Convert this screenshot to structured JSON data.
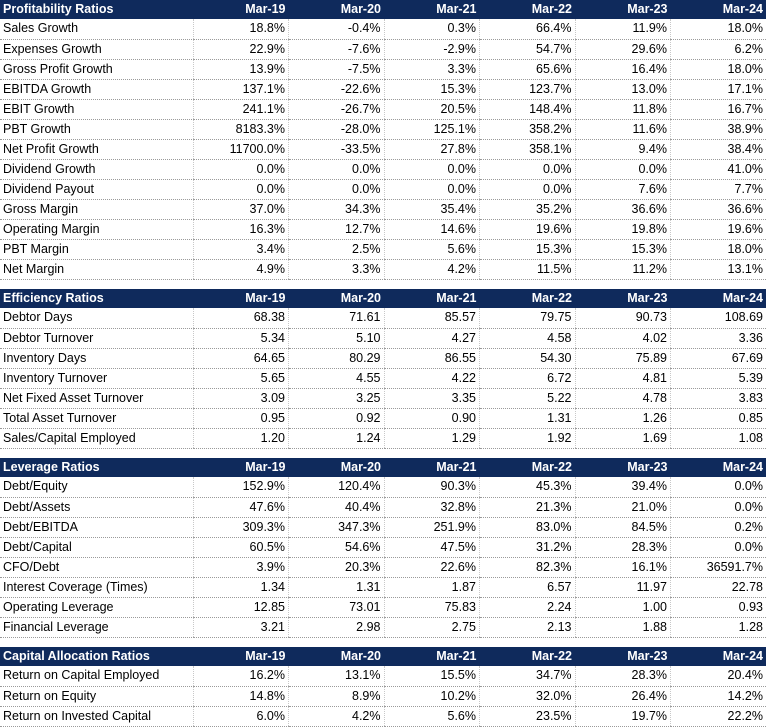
{
  "years": [
    "Mar-19",
    "Mar-20",
    "Mar-21",
    "Mar-22",
    "Mar-23",
    "Mar-24"
  ],
  "sections": [
    {
      "title": "Profitability Ratios",
      "rows": [
        {
          "label": "Sales Growth",
          "values": [
            "18.8%",
            "-0.4%",
            "0.3%",
            "66.4%",
            "11.9%",
            "18.0%"
          ]
        },
        {
          "label": "Expenses Growth",
          "values": [
            "22.9%",
            "-7.6%",
            "-2.9%",
            "54.7%",
            "29.6%",
            "6.2%"
          ]
        },
        {
          "label": "Gross Profit Growth",
          "values": [
            "13.9%",
            "-7.5%",
            "3.3%",
            "65.6%",
            "16.4%",
            "18.0%"
          ]
        },
        {
          "label": "EBITDA Growth",
          "values": [
            "137.1%",
            "-22.6%",
            "15.3%",
            "123.7%",
            "13.0%",
            "17.1%"
          ]
        },
        {
          "label": "EBIT Growth",
          "values": [
            "241.1%",
            "-26.7%",
            "20.5%",
            "148.4%",
            "11.8%",
            "16.7%"
          ]
        },
        {
          "label": "PBT Growth",
          "values": [
            "8183.3%",
            "-28.0%",
            "125.1%",
            "358.2%",
            "11.6%",
            "38.9%"
          ]
        },
        {
          "label": "Net Profit Growth",
          "values": [
            "11700.0%",
            "-33.5%",
            "27.8%",
            "358.1%",
            "9.4%",
            "38.4%"
          ]
        },
        {
          "label": "Dividend Growth",
          "values": [
            "0.0%",
            "0.0%",
            "0.0%",
            "0.0%",
            "0.0%",
            "41.0%"
          ]
        },
        {
          "label": "Dividend Payout",
          "values": [
            "0.0%",
            "0.0%",
            "0.0%",
            "0.0%",
            "7.6%",
            "7.7%"
          ]
        },
        {
          "label": "Gross Margin",
          "values": [
            "37.0%",
            "34.3%",
            "35.4%",
            "35.2%",
            "36.6%",
            "36.6%"
          ]
        },
        {
          "label": "Operating Margin",
          "values": [
            "16.3%",
            "12.7%",
            "14.6%",
            "19.6%",
            "19.8%",
            "19.6%"
          ]
        },
        {
          "label": "PBT Margin",
          "values": [
            "3.4%",
            "2.5%",
            "5.6%",
            "15.3%",
            "15.3%",
            "18.0%"
          ]
        },
        {
          "label": "Net Margin",
          "values": [
            "4.9%",
            "3.3%",
            "4.2%",
            "11.5%",
            "11.2%",
            "13.1%"
          ]
        }
      ]
    },
    {
      "title": "Efficiency Ratios",
      "rows": [
        {
          "label": "Debtor Days",
          "values": [
            "68.38",
            "71.61",
            "85.57",
            "79.75",
            "90.73",
            "108.69"
          ]
        },
        {
          "label": "Debtor Turnover",
          "values": [
            "5.34",
            "5.10",
            "4.27",
            "4.58",
            "4.02",
            "3.36"
          ]
        },
        {
          "label": "Inventory Days",
          "values": [
            "64.65",
            "80.29",
            "86.55",
            "54.30",
            "75.89",
            "67.69"
          ]
        },
        {
          "label": "Inventory Turnover",
          "values": [
            "5.65",
            "4.55",
            "4.22",
            "6.72",
            "4.81",
            "5.39"
          ]
        },
        {
          "label": "Net Fixed Asset Turnover",
          "values": [
            "3.09",
            "3.25",
            "3.35",
            "5.22",
            "4.78",
            "3.83"
          ]
        },
        {
          "label": "Total Asset Turnover",
          "values": [
            "0.95",
            "0.92",
            "0.90",
            "1.31",
            "1.26",
            "0.85"
          ]
        },
        {
          "label": "Sales/Capital Employed",
          "values": [
            "1.20",
            "1.24",
            "1.29",
            "1.92",
            "1.69",
            "1.08"
          ]
        }
      ]
    },
    {
      "title": "Leverage Ratios",
      "rows": [
        {
          "label": "Debt/Equity",
          "values": [
            "152.9%",
            "120.4%",
            "90.3%",
            "45.3%",
            "39.4%",
            "0.0%"
          ]
        },
        {
          "label": "Debt/Assets",
          "values": [
            "47.6%",
            "40.4%",
            "32.8%",
            "21.3%",
            "21.0%",
            "0.0%"
          ]
        },
        {
          "label": "Debt/EBITDA",
          "values": [
            "309.3%",
            "347.3%",
            "251.9%",
            "83.0%",
            "84.5%",
            "0.2%"
          ]
        },
        {
          "label": "Debt/Capital",
          "values": [
            "60.5%",
            "54.6%",
            "47.5%",
            "31.2%",
            "28.3%",
            "0.0%"
          ]
        },
        {
          "label": "CFO/Debt",
          "values": [
            "3.9%",
            "20.3%",
            "22.6%",
            "82.3%",
            "16.1%",
            "36591.7%"
          ]
        },
        {
          "label": "Interest Coverage (Times)",
          "values": [
            "1.34",
            "1.31",
            "1.87",
            "6.57",
            "11.97",
            "22.78"
          ]
        },
        {
          "label": "Operating Leverage",
          "values": [
            "12.85",
            "73.01",
            "75.83",
            "2.24",
            "1.00",
            "0.93"
          ]
        },
        {
          "label": "Financial Leverage",
          "values": [
            "3.21",
            "2.98",
            "2.75",
            "2.13",
            "1.88",
            "1.28"
          ]
        }
      ]
    },
    {
      "title": "Capital Allocation Ratios",
      "rows": [
        {
          "label": "Return on Capital Employed",
          "values": [
            "16.2%",
            "13.1%",
            "15.5%",
            "34.7%",
            "28.3%",
            "20.4%"
          ]
        },
        {
          "label": "Return on Equity",
          "values": [
            "14.8%",
            "8.9%",
            "10.2%",
            "32.0%",
            "26.4%",
            "14.2%"
          ]
        },
        {
          "label": "Return on Invested Capital",
          "values": [
            "6.0%",
            "4.2%",
            "5.6%",
            "23.5%",
            "19.7%",
            "22.2%"
          ]
        }
      ]
    }
  ],
  "colors": {
    "header_bg": "#0f2a5c",
    "header_text": "#ffffff",
    "row_border": "#9a9a9a"
  }
}
